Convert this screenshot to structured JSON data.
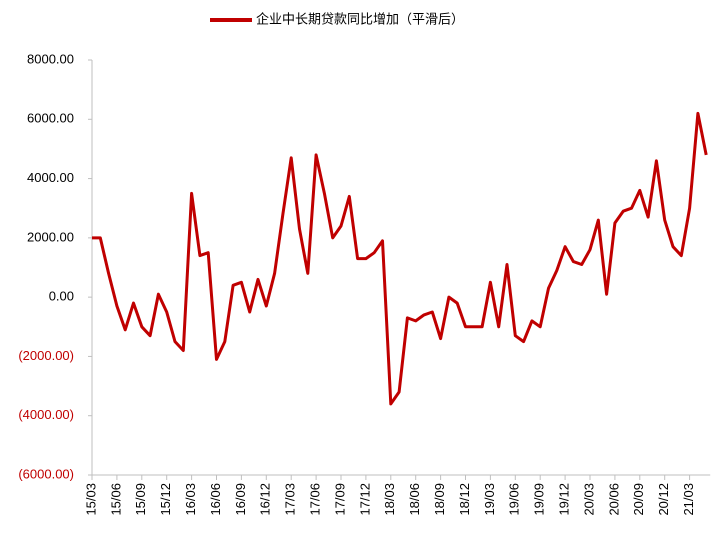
{
  "chart_data": {
    "type": "line",
    "categories": [
      "15/03",
      null,
      null,
      "15/06",
      null,
      null,
      "15/09",
      null,
      null,
      "15/12",
      null,
      null,
      "16/03",
      null,
      null,
      "16/06",
      null,
      null,
      "16/09",
      null,
      null,
      "16/12",
      null,
      null,
      "17/03",
      null,
      null,
      "17/06",
      null,
      null,
      "17/09",
      null,
      null,
      "17/12",
      null,
      null,
      "18/03",
      null,
      null,
      "18/06",
      null,
      null,
      "18/09",
      null,
      null,
      "18/12",
      null,
      null,
      "19/03",
      null,
      null,
      "19/06",
      null,
      null,
      "19/09",
      null,
      null,
      "19/12",
      null,
      null,
      "20/03",
      null,
      null,
      "20/06",
      null,
      null,
      "20/09",
      null,
      null,
      "20/12",
      null,
      null,
      "21/03",
      null,
      null
    ],
    "series": [
      {
        "name": "企业中长期贷款同比增加（平滑后）",
        "color": "#c00000",
        "values": [
          2000,
          2000,
          800,
          -300,
          -1100,
          -200,
          -1000,
          -1300,
          100,
          -500,
          -1500,
          -1800,
          3500,
          1400,
          1500,
          -2100,
          -1500,
          400,
          500,
          -500,
          600,
          -300,
          800,
          2800,
          4700,
          2300,
          800,
          4800,
          3500,
          2000,
          2400,
          3400,
          1300,
          1300,
          1500,
          1900,
          -3600,
          -3200,
          -700,
          -800,
          -600,
          -500,
          -1400,
          0,
          -200,
          -1000,
          -1000,
          -1000,
          500,
          -1000,
          1100,
          -1300,
          -1500,
          -800,
          -1000,
          300,
          900,
          1700,
          1200,
          1100,
          1600,
          2600,
          100,
          2500,
          2900,
          3000,
          3600,
          2700,
          4600,
          2600,
          1700,
          1400,
          3000,
          6200,
          4800
        ]
      }
    ],
    "ylim": [
      -6000,
      8000
    ],
    "yticks": [
      {
        "value": -6000,
        "label": "(6000.00)"
      },
      {
        "value": -4000,
        "label": "(4000.00)"
      },
      {
        "value": -2000,
        "label": "(2000.00)"
      },
      {
        "value": 0,
        "label": "0.00"
      },
      {
        "value": 2000,
        "label": "2000.00"
      },
      {
        "value": 4000,
        "label": "4000.00"
      },
      {
        "value": 6000,
        "label": "6000.00"
      },
      {
        "value": 8000,
        "label": "8000.00"
      }
    ],
    "grid": false,
    "legend": "top"
  }
}
